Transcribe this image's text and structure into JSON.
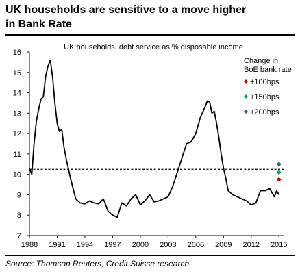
{
  "header": {
    "title_line1": "UK households are sensitive to a move higher",
    "title_line2": "in Bank Rate"
  },
  "footer": {
    "source": "Source: Thomson Reuters, Credit Suisse research"
  },
  "chart_data": {
    "type": "line",
    "title": "UK households, debt service as % disposable income",
    "xlabel": "",
    "ylabel": "",
    "xlim": [
      1988,
      2015.5
    ],
    "ylim": [
      7,
      16
    ],
    "x_ticks": [
      1988,
      1991,
      1994,
      1997,
      2000,
      2003,
      2006,
      2009,
      2012,
      2015
    ],
    "y_ticks": [
      7,
      8,
      9,
      10,
      11,
      12,
      13,
      14,
      15,
      16
    ],
    "grid": false,
    "legend": {
      "title_line1": "Change in",
      "title_line2": "BoE bank rate",
      "placement": "top-right"
    },
    "series": [
      {
        "name": "",
        "color": "#000000",
        "x": [
          1988.0,
          1988.25,
          1988.5,
          1988.75,
          1989.0,
          1989.25,
          1989.5,
          1989.75,
          1990.0,
          1990.25,
          1990.5,
          1990.75,
          1991.0,
          1991.25,
          1991.5,
          1991.75,
          1992.0,
          1992.5,
          1993.0,
          1993.5,
          1994.0,
          1994.5,
          1995.0,
          1995.5,
          1996.0,
          1996.5,
          1997.0,
          1997.5,
          1998.0,
          1998.5,
          1999.0,
          1999.5,
          2000.0,
          2000.5,
          2001.0,
          2001.5,
          2002.0,
          2002.5,
          2003.0,
          2003.5,
          2004.0,
          2004.5,
          2005.0,
          2005.5,
          2006.0,
          2006.5,
          2007.0,
          2007.25,
          2007.5,
          2007.75,
          2008.0,
          2008.25,
          2008.5,
          2008.75,
          2009.0,
          2009.25,
          2009.5,
          2010.0,
          2010.5,
          2011.0,
          2011.5,
          2012.0,
          2012.5,
          2013.0,
          2013.5,
          2014.0,
          2014.5,
          2014.75,
          2015.0
        ],
        "values": [
          10.3,
          10.0,
          11.5,
          12.6,
          13.2,
          13.7,
          13.8,
          14.8,
          15.3,
          15.6,
          14.8,
          13.5,
          12.5,
          12.1,
          12.2,
          11.3,
          10.7,
          9.7,
          8.8,
          8.6,
          8.55,
          8.7,
          8.6,
          8.55,
          8.8,
          8.2,
          8.0,
          7.9,
          8.6,
          8.45,
          8.8,
          9.0,
          8.5,
          8.7,
          9.0,
          8.65,
          8.7,
          8.8,
          8.9,
          9.4,
          10.1,
          10.8,
          11.5,
          11.6,
          12.0,
          12.8,
          13.3,
          13.6,
          13.55,
          13.0,
          13.1,
          12.5,
          11.8,
          11.0,
          10.3,
          9.8,
          9.2,
          9.0,
          8.9,
          8.8,
          8.7,
          8.5,
          8.6,
          9.2,
          9.2,
          9.3,
          8.9,
          9.2,
          9.0
        ]
      },
      {
        "name": "+100bps",
        "type": "scatter",
        "color": "#c00000",
        "x": [
          2015.0
        ],
        "values": [
          9.75
        ]
      },
      {
        "name": "+150bps",
        "type": "scatter",
        "color": "#00a651",
        "x": [
          2015.0
        ],
        "values": [
          10.1
        ]
      },
      {
        "name": "+200bps",
        "type": "scatter",
        "color": "#2e5b8a",
        "x": [
          2015.0
        ],
        "values": [
          10.5
        ]
      }
    ],
    "reference_line": {
      "y": 10.25,
      "style": "dashed",
      "color": "#000000"
    }
  }
}
